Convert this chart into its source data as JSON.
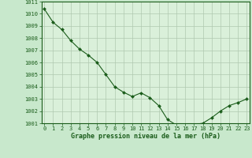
{
  "x": [
    0,
    1,
    2,
    3,
    4,
    5,
    6,
    7,
    8,
    9,
    10,
    11,
    12,
    13,
    14,
    15,
    16,
    17,
    18,
    19,
    20,
    21,
    22,
    23
  ],
  "y": [
    1010.4,
    1009.3,
    1008.7,
    1007.8,
    1007.1,
    1006.6,
    1006.0,
    1005.0,
    1004.0,
    1003.55,
    1003.2,
    1003.5,
    1003.1,
    1002.45,
    1001.3,
    1000.85,
    1000.65,
    1000.9,
    1001.0,
    1001.45,
    1002.0,
    1002.45,
    1002.7,
    1003.0
  ],
  "xlabel": "Graphe pression niveau de la mer (hPa)",
  "bg_color": "#c8e8cc",
  "line_color": "#1a5c1a",
  "marker_color": "#1a5c1a",
  "grid_color": "#b0c8b0",
  "ylim": [
    1001,
    1011
  ],
  "xlim": [
    -0.3,
    23.3
  ],
  "yticks": [
    1001,
    1002,
    1003,
    1004,
    1005,
    1006,
    1007,
    1008,
    1009,
    1010,
    1011
  ],
  "xticks": [
    0,
    1,
    2,
    3,
    4,
    5,
    6,
    7,
    8,
    9,
    10,
    11,
    12,
    13,
    14,
    15,
    16,
    17,
    18,
    19,
    20,
    21,
    22,
    23
  ],
  "xlabel_color": "#1a5c1a",
  "xlabel_fontsize": 6.0,
  "tick_fontsize": 5.0,
  "tick_color": "#1a5c1a",
  "border_color": "#1a5c1a",
  "panel_bg": "#daf0da"
}
